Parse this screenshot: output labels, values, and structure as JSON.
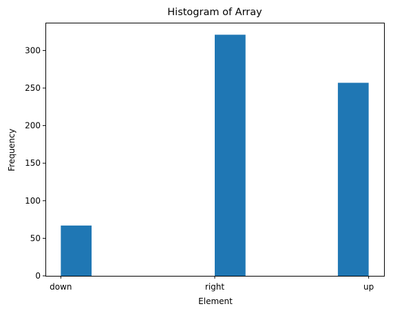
{
  "chart_data": {
    "type": "bar",
    "title": "Histogram of Array",
    "xlabel": "Element",
    "ylabel": "Frequency",
    "categories": [
      "down",
      "right",
      "up"
    ],
    "values": [
      67,
      321,
      257
    ],
    "ylim": [
      0,
      337
    ],
    "yticks": [
      0,
      50,
      100,
      150,
      200,
      250,
      300
    ],
    "grid": false,
    "legend": "none",
    "bar_color": "#1f77b4"
  }
}
